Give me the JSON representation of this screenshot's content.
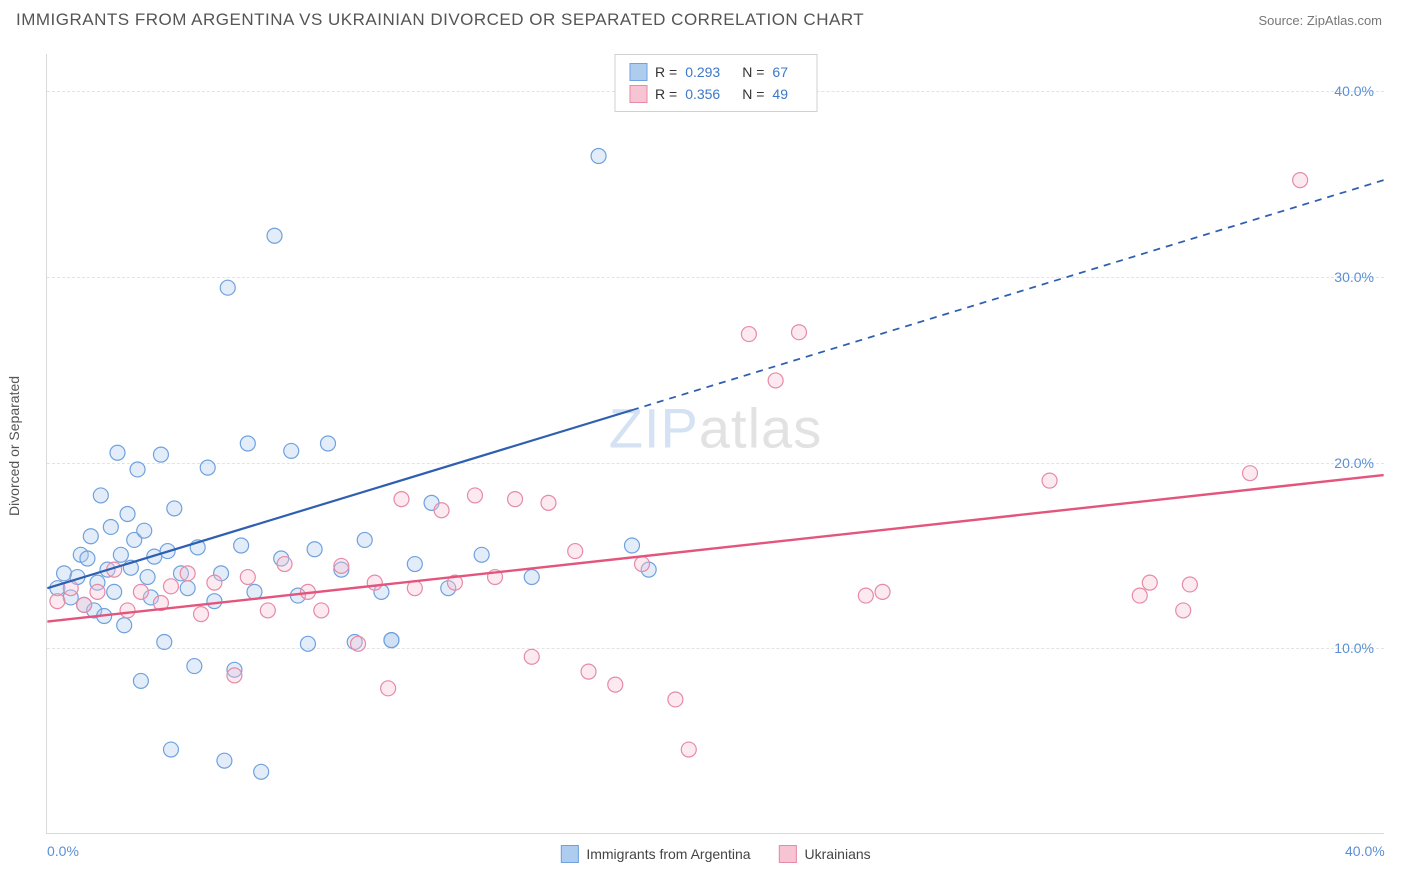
{
  "title": "IMMIGRANTS FROM ARGENTINA VS UKRAINIAN DIVORCED OR SEPARATED CORRELATION CHART",
  "source_label": "Source: ZipAtlas.com",
  "ylabel": "Divorced or Separated",
  "watermark_a": "ZIP",
  "watermark_b": "atlas",
  "chart": {
    "type": "scatter",
    "xlim": [
      0,
      40
    ],
    "ylim": [
      0,
      42
    ],
    "x_ticks": [
      {
        "v": 0,
        "label": "0.0%"
      },
      {
        "v": 40,
        "label": "40.0%"
      }
    ],
    "y_ticks": [
      {
        "v": 10,
        "label": "10.0%"
      },
      {
        "v": 20,
        "label": "20.0%"
      },
      {
        "v": 30,
        "label": "30.0%"
      },
      {
        "v": 40,
        "label": "40.0%"
      }
    ],
    "background_color": "#ffffff",
    "grid_color": "#e3e3e3",
    "marker_radius": 7.5,
    "marker_stroke_width": 1.2,
    "fill_opacity": 0.35,
    "series": [
      {
        "name": "Immigrants from Argentina",
        "legend_key": "legend.series1",
        "color_stroke": "#6fa1de",
        "color_fill": "#aeccee",
        "R": "0.293",
        "N": "67",
        "trend": {
          "color": "#2f5fb0",
          "width": 2.2,
          "solid_from_x": 0,
          "solid_from_y": 13.2,
          "solid_to_x": 17.5,
          "solid_to_y": 22.8,
          "dashed_to_x": 40,
          "dashed_to_y": 35.2
        },
        "points": [
          [
            0.3,
            13.2
          ],
          [
            0.5,
            14.0
          ],
          [
            0.7,
            12.7
          ],
          [
            0.9,
            13.8
          ],
          [
            1.0,
            15.0
          ],
          [
            1.1,
            12.3
          ],
          [
            1.2,
            14.8
          ],
          [
            1.3,
            16.0
          ],
          [
            1.4,
            12.0
          ],
          [
            1.5,
            13.5
          ],
          [
            1.6,
            18.2
          ],
          [
            1.7,
            11.7
          ],
          [
            1.8,
            14.2
          ],
          [
            1.9,
            16.5
          ],
          [
            2.0,
            13.0
          ],
          [
            2.1,
            20.5
          ],
          [
            2.2,
            15.0
          ],
          [
            2.3,
            11.2
          ],
          [
            2.4,
            17.2
          ],
          [
            2.5,
            14.3
          ],
          [
            2.6,
            15.8
          ],
          [
            2.7,
            19.6
          ],
          [
            2.8,
            8.2
          ],
          [
            2.9,
            16.3
          ],
          [
            3.0,
            13.8
          ],
          [
            3.1,
            12.7
          ],
          [
            3.2,
            14.9
          ],
          [
            3.4,
            20.4
          ],
          [
            3.5,
            10.3
          ],
          [
            3.6,
            15.2
          ],
          [
            3.7,
            4.5
          ],
          [
            3.8,
            17.5
          ],
          [
            4.0,
            14.0
          ],
          [
            4.2,
            13.2
          ],
          [
            4.4,
            9.0
          ],
          [
            4.5,
            15.4
          ],
          [
            4.8,
            19.7
          ],
          [
            5.0,
            12.5
          ],
          [
            5.2,
            14.0
          ],
          [
            5.3,
            3.9
          ],
          [
            5.4,
            29.4
          ],
          [
            5.6,
            8.8
          ],
          [
            5.8,
            15.5
          ],
          [
            6.0,
            21.0
          ],
          [
            6.2,
            13.0
          ],
          [
            6.4,
            3.3
          ],
          [
            6.8,
            32.2
          ],
          [
            7.0,
            14.8
          ],
          [
            7.3,
            20.6
          ],
          [
            7.5,
            12.8
          ],
          [
            7.8,
            10.2
          ],
          [
            8.0,
            15.3
          ],
          [
            8.4,
            21.0
          ],
          [
            8.8,
            14.2
          ],
          [
            9.2,
            10.3
          ],
          [
            9.5,
            15.8
          ],
          [
            10.0,
            13.0
          ],
          [
            10.3,
            10.4
          ],
          [
            10.3,
            10.4
          ],
          [
            11.0,
            14.5
          ],
          [
            11.5,
            17.8
          ],
          [
            12.0,
            13.2
          ],
          [
            13.0,
            15.0
          ],
          [
            14.5,
            13.8
          ],
          [
            16.5,
            36.5
          ],
          [
            17.5,
            15.5
          ],
          [
            18.0,
            14.2
          ]
        ]
      },
      {
        "name": "Ukrainians",
        "legend_key": "legend.series2",
        "color_stroke": "#e68aa5",
        "color_fill": "#f6c4d3",
        "R": "0.356",
        "N": "49",
        "trend": {
          "color": "#e3557d",
          "width": 2.4,
          "solid_from_x": 0,
          "solid_from_y": 11.4,
          "solid_to_x": 40,
          "solid_to_y": 19.3,
          "dashed_to_x": null,
          "dashed_to_y": null
        },
        "points": [
          [
            0.3,
            12.5
          ],
          [
            0.7,
            13.2
          ],
          [
            1.1,
            12.3
          ],
          [
            1.5,
            13.0
          ],
          [
            2.0,
            14.2
          ],
          [
            2.4,
            12.0
          ],
          [
            2.8,
            13.0
          ],
          [
            3.4,
            12.4
          ],
          [
            3.7,
            13.3
          ],
          [
            4.2,
            14.0
          ],
          [
            4.6,
            11.8
          ],
          [
            5.0,
            13.5
          ],
          [
            5.6,
            8.5
          ],
          [
            6.0,
            13.8
          ],
          [
            6.6,
            12.0
          ],
          [
            7.1,
            14.5
          ],
          [
            7.8,
            13.0
          ],
          [
            8.2,
            12.0
          ],
          [
            8.8,
            14.4
          ],
          [
            9.3,
            10.2
          ],
          [
            9.8,
            13.5
          ],
          [
            10.2,
            7.8
          ],
          [
            10.6,
            18.0
          ],
          [
            11.0,
            13.2
          ],
          [
            11.8,
            17.4
          ],
          [
            12.2,
            13.5
          ],
          [
            12.8,
            18.2
          ],
          [
            13.4,
            13.8
          ],
          [
            14.0,
            18.0
          ],
          [
            14.5,
            9.5
          ],
          [
            15.0,
            17.8
          ],
          [
            15.8,
            15.2
          ],
          [
            16.2,
            8.7
          ],
          [
            17.0,
            8.0
          ],
          [
            17.8,
            14.5
          ],
          [
            18.8,
            7.2
          ],
          [
            19.2,
            4.5
          ],
          [
            21.0,
            26.9
          ],
          [
            21.8,
            24.4
          ],
          [
            22.5,
            27.0
          ],
          [
            24.5,
            12.8
          ],
          [
            25.0,
            13.0
          ],
          [
            30.0,
            19.0
          ],
          [
            32.7,
            12.8
          ],
          [
            33.0,
            13.5
          ],
          [
            34.0,
            12.0
          ],
          [
            34.2,
            13.4
          ],
          [
            36.0,
            19.4
          ],
          [
            37.5,
            35.2
          ]
        ]
      }
    ]
  },
  "legend": {
    "series1": "Immigrants from Argentina",
    "series2": "Ukrainians",
    "R_prefix": "R = ",
    "N_prefix": "N = "
  }
}
